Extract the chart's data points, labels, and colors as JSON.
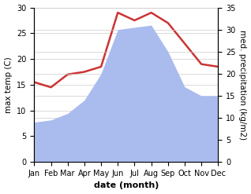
{
  "months": [
    "Jan",
    "Feb",
    "Mar",
    "Apr",
    "May",
    "Jun",
    "Jul",
    "Aug",
    "Sep",
    "Oct",
    "Nov",
    "Dec"
  ],
  "temperature": [
    15.5,
    14.5,
    17.0,
    17.5,
    18.5,
    29.0,
    27.5,
    29.0,
    27.0,
    23.0,
    19.0,
    18.5
  ],
  "precipitation": [
    9.0,
    9.5,
    11.0,
    14.0,
    20.0,
    30.0,
    30.5,
    31.0,
    25.0,
    17.0,
    15.0,
    15.0
  ],
  "temp_color": "#cc3333",
  "precip_color": "#aabbee",
  "temp_ylim": [
    0,
    30
  ],
  "precip_ylim": [
    0,
    35
  ],
  "temp_ylabel": "max temp (C)",
  "precip_ylabel": "med. precipitation (kg/m2)",
  "xlabel": "date (month)",
  "background_color": "#ffffff",
  "grid_color": "#cccccc",
  "temp_linewidth": 1.8,
  "xlabel_fontsize": 8,
  "ylabel_fontsize": 7.5,
  "tick_fontsize": 7
}
